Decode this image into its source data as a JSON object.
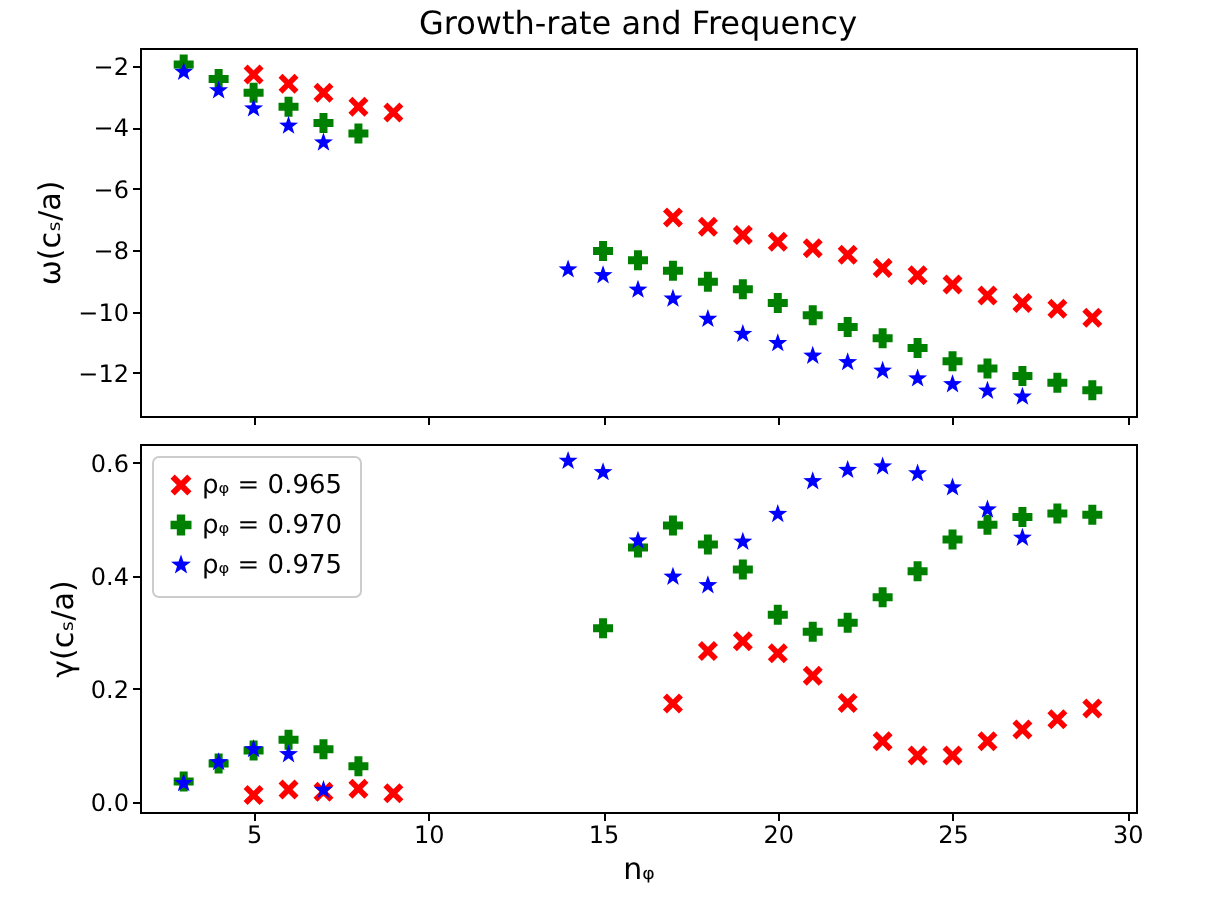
{
  "chart_data": [
    {
      "type": "scatter",
      "title": "Growth-rate and Frequency",
      "ylabel": "ω(cₛ/a)",
      "xlim": [
        1.75,
        30.25
      ],
      "xticks": [
        5,
        10,
        15,
        20,
        25,
        30
      ],
      "ylim": [
        -13.4,
        -1.42
      ],
      "yticks": [
        -12,
        -10,
        -8,
        -6,
        -4,
        -2
      ],
      "tick_labels": "y",
      "grid": false,
      "legend": false,
      "series": [
        {
          "color": "#ff0000",
          "marker": "x",
          "x": [
            5,
            6,
            7,
            8,
            9,
            17,
            18,
            19,
            20,
            21,
            22,
            23,
            24,
            25,
            26,
            27,
            28,
            29
          ],
          "values": [
            -2.28,
            -2.58,
            -2.88,
            -3.33,
            -3.52,
            -6.94,
            -7.24,
            -7.51,
            -7.73,
            -7.94,
            -8.15,
            -8.58,
            -8.82,
            -9.12,
            -9.48,
            -9.72,
            -9.91,
            -10.2
          ]
        },
        {
          "color": "#008000",
          "marker": "cross",
          "x": [
            3,
            4,
            5,
            6,
            7,
            8,
            15,
            16,
            17,
            18,
            19,
            20,
            21,
            22,
            23,
            24,
            25,
            26,
            27,
            28,
            29
          ],
          "values": [
            -1.96,
            -2.43,
            -2.88,
            -3.33,
            -3.86,
            -4.2,
            -8.03,
            -8.33,
            -8.67,
            -9.03,
            -9.27,
            -9.72,
            -10.12,
            -10.5,
            -10.87,
            -11.19,
            -11.62,
            -11.85,
            -12.1,
            -12.32,
            -12.56
          ]
        },
        {
          "color": "#0000ff",
          "marker": "star",
          "x": [
            3,
            4,
            5,
            6,
            7,
            14,
            15,
            16,
            17,
            18,
            19,
            20,
            21,
            22,
            23,
            24,
            25,
            26,
            27
          ],
          "values": [
            -2.2,
            -2.8,
            -3.39,
            -3.95,
            -4.5,
            -8.63,
            -8.82,
            -9.29,
            -9.58,
            -10.24,
            -10.73,
            -11.03,
            -11.44,
            -11.65,
            -11.93,
            -12.18,
            -12.37,
            -12.58,
            -12.77
          ]
        }
      ]
    },
    {
      "type": "scatter",
      "xlabel": "nᵩ",
      "ylabel": "γ(cₛ/a)",
      "xlim": [
        1.75,
        30.25
      ],
      "xticks": [
        5,
        10,
        15,
        20,
        25,
        30
      ],
      "ylim": [
        -0.018,
        0.633
      ],
      "yticks": [
        {
          "value": 0,
          "label": "0.0"
        },
        {
          "value": 0.2,
          "label": "0.2"
        },
        {
          "value": 0.4,
          "label": "0.4"
        },
        {
          "value": 0.6,
          "label": "0.6"
        }
      ],
      "grid": false,
      "legend": "top left",
      "series": [
        {
          "name": "ρᵩ = 0.965",
          "color": "#ff0000",
          "marker": "x",
          "x": [
            5,
            6,
            7,
            8,
            9,
            17,
            18,
            19,
            20,
            21,
            22,
            23,
            24,
            25,
            26,
            27,
            28,
            29
          ],
          "values": [
            0.012,
            0.022,
            0.018,
            0.023,
            0.015,
            0.174,
            0.267,
            0.284,
            0.263,
            0.223,
            0.175,
            0.107,
            0.082,
            0.082,
            0.107,
            0.128,
            0.146,
            0.165
          ]
        },
        {
          "name": "ρᵩ = 0.970",
          "color": "#008000",
          "marker": "cross",
          "x": [
            3,
            4,
            5,
            6,
            7,
            8,
            15,
            16,
            17,
            18,
            19,
            20,
            21,
            22,
            23,
            24,
            25,
            26,
            27,
            28,
            29
          ],
          "values": [
            0.036,
            0.068,
            0.091,
            0.11,
            0.093,
            0.063,
            0.307,
            0.45,
            0.489,
            0.455,
            0.411,
            0.331,
            0.301,
            0.317,
            0.362,
            0.408,
            0.464,
            0.49,
            0.504,
            0.51,
            0.508
          ]
        },
        {
          "name": "ρᵩ = 0.975",
          "color": "#0000ff",
          "marker": "star",
          "x": [
            3,
            4,
            5,
            6,
            7,
            14,
            15,
            16,
            17,
            18,
            19,
            20,
            21,
            22,
            23,
            24,
            25,
            26,
            27
          ],
          "values": [
            0.033,
            0.07,
            0.093,
            0.084,
            0.021,
            0.603,
            0.583,
            0.462,
            0.398,
            0.383,
            0.46,
            0.509,
            0.567,
            0.587,
            0.593,
            0.581,
            0.556,
            0.517,
            0.467
          ]
        }
      ]
    }
  ]
}
